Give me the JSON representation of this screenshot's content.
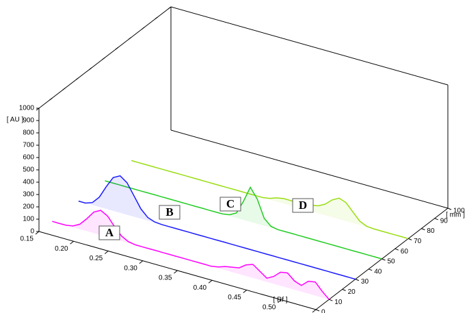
{
  "chart_data": {
    "type": "waterfall",
    "y_label": "[ AU ]",
    "x_label": "[ Rf ]",
    "z_label": "[ mm ]",
    "xlim": [
      0.15,
      0.55
    ],
    "ylim": [
      0,
      1000
    ],
    "zlim": [
      0,
      100
    ],
    "xticks": [
      0.15,
      {
        "value": 0.2,
        "label": "0.20"
      },
      0.25,
      {
        "value": 0.3,
        "label": "0.30"
      },
      0.35,
      {
        "value": 0.4,
        "label": "0.40"
      },
      0.45,
      {
        "value": 0.5,
        "label": "0.50"
      },
      0.55
    ],
    "yticks": [
      0,
      100,
      200,
      300,
      400,
      500,
      600,
      700,
      800,
      900,
      1000
    ],
    "zticks": [
      0,
      10,
      20,
      30,
      40,
      50,
      60,
      70,
      80,
      90,
      100
    ],
    "x": [
      0.15,
      0.16,
      0.17,
      0.18,
      0.19,
      0.2,
      0.21,
      0.22,
      0.23,
      0.24,
      0.25,
      0.26,
      0.27,
      0.28,
      0.29,
      0.3,
      0.31,
      0.32,
      0.33,
      0.34,
      0.35,
      0.36,
      0.37,
      0.38,
      0.39,
      0.4,
      0.41,
      0.42,
      0.43,
      0.44,
      0.45,
      0.46,
      0.47,
      0.48,
      0.49,
      0.5,
      0.51,
      0.52,
      0.53,
      0.54,
      0.55
    ],
    "series": [
      {
        "name": "A",
        "color": "#ff00ff",
        "z": 10,
        "values": [
          0,
          0,
          0,
          10,
          40,
          100,
          170,
          200,
          170,
          100,
          40,
          10,
          0,
          0,
          0,
          0,
          0,
          0,
          0,
          0,
          0,
          0,
          0,
          0,
          10,
          30,
          40,
          50,
          90,
          110,
          70,
          30,
          60,
          110,
          120,
          70,
          50,
          100,
          110,
          50,
          0
        ]
      },
      {
        "name": "B",
        "color": "#1a1aff",
        "z": 30,
        "values": [
          0,
          0,
          20,
          80,
          180,
          270,
          300,
          260,
          170,
          80,
          25,
          5,
          0,
          0,
          0,
          0,
          0,
          0,
          0,
          0,
          0,
          0,
          0,
          0,
          0,
          0,
          0,
          0,
          0,
          0,
          0,
          0,
          0,
          0,
          0,
          0,
          0,
          0,
          0,
          0,
          0
        ]
      },
      {
        "name": "C",
        "color": "#22cc22",
        "z": 50,
        "values": [
          0,
          0,
          0,
          0,
          0,
          0,
          0,
          0,
          0,
          0,
          0,
          0,
          0,
          0,
          0,
          0,
          0,
          0,
          10,
          40,
          150,
          280,
          200,
          60,
          10,
          0,
          0,
          0,
          0,
          0,
          0,
          0,
          0,
          0,
          0,
          0,
          0,
          0,
          0,
          0,
          0
        ]
      },
      {
        "name": "D",
        "color": "#99dd11",
        "z": 70,
        "values": [
          0,
          0,
          0,
          0,
          0,
          0,
          0,
          0,
          0,
          0,
          0,
          0,
          0,
          0,
          0,
          0,
          0,
          0,
          0,
          0,
          10,
          30,
          40,
          40,
          40,
          40,
          50,
          60,
          90,
          140,
          170,
          150,
          90,
          30,
          5,
          0,
          0,
          0,
          0,
          0,
          0
        ]
      }
    ]
  }
}
